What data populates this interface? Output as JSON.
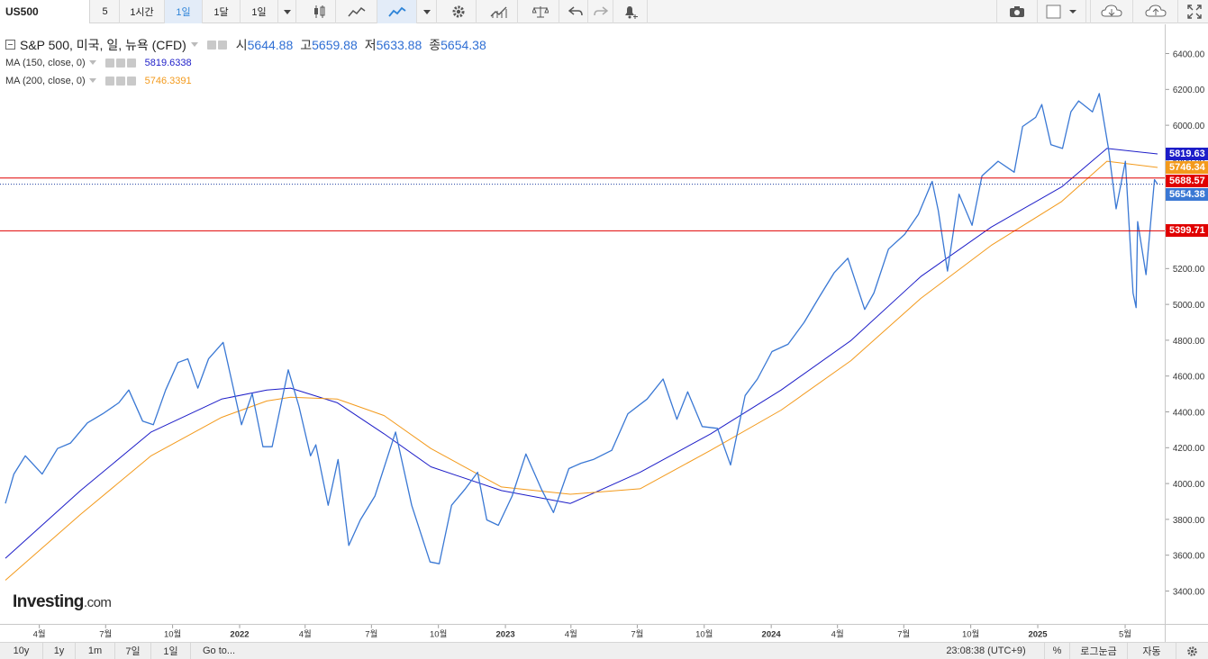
{
  "toolbar": {
    "symbol": "US500",
    "items": [
      "5",
      "1시간",
      "1일",
      "1달",
      "1일"
    ],
    "active_item": "1일"
  },
  "legend": {
    "title": "S&P 500, 미국, 일, 뉴욕 (CFD)",
    "open_label": "시",
    "open": "5644.88",
    "high_label": "고",
    "high": "5659.88",
    "low_label": "저",
    "low": "5633.88",
    "close_label": "종",
    "close": "5654.38",
    "ma150_label": "MA (150, close, 0)",
    "ma150_value": "5819.6338",
    "ma200_label": "MA (200, close, 0)",
    "ma200_value": "5746.3391"
  },
  "logo": {
    "main": "Investing",
    "suffix": ".com"
  },
  "badges": {
    "ma150": "5819.63",
    "ma200": "5746.34",
    "hline_top": "5688.57",
    "last": "5654.38",
    "hline_bottom": "5399.71"
  },
  "bottombar": {
    "ranges": [
      "10y",
      "1y",
      "1m",
      "7일",
      "1일"
    ],
    "goto": "Go to...",
    "time": "23:08:38 (UTC+9)",
    "percent": "%",
    "log": "로그눈금",
    "auto": "자동"
  },
  "colors": {
    "price": "#3a78d4",
    "ma150": "#1d1dc8",
    "ma200": "#f39a1c",
    "hline": "#e00000",
    "last_line": "#1f3fa0",
    "accent": "#2e84d8"
  },
  "chart_data": {
    "type": "line",
    "ylim": [
      3340,
      6440
    ],
    "y_ticks": [
      3400,
      3600,
      3800,
      4000,
      4200,
      4400,
      4600,
      4800,
      5000,
      5200,
      5400,
      5600,
      5800,
      6000,
      6200,
      6400
    ],
    "x_range": [
      "2021-03-25",
      "2025-05-06"
    ],
    "x_tick_labels": [
      {
        "label": "4월",
        "date": "2021-04-01"
      },
      {
        "label": "7월",
        "date": "2021-07-01"
      },
      {
        "label": "10월",
        "date": "2021-10-01"
      },
      {
        "label": "2022",
        "date": "2022-01-01"
      },
      {
        "label": "4월",
        "date": "2022-04-01"
      },
      {
        "label": "7월",
        "date": "2022-07-01"
      },
      {
        "label": "10월",
        "date": "2022-10-01"
      },
      {
        "label": "2023",
        "date": "2023-01-01"
      },
      {
        "label": "4월",
        "date": "2023-04-01"
      },
      {
        "label": "7월",
        "date": "2023-07-01"
      },
      {
        "label": "10월",
        "date": "2023-10-01"
      },
      {
        "label": "2024",
        "date": "2024-01-01"
      },
      {
        "label": "4월",
        "date": "2024-04-01"
      },
      {
        "label": "7월",
        "date": "2024-07-01"
      },
      {
        "label": "10월",
        "date": "2024-10-01"
      },
      {
        "label": "2025",
        "date": "2025-01-01"
      },
      {
        "label": "5월",
        "date": "2025-05-01"
      }
    ],
    "horizontal_lines": [
      5688.57,
      5399.71
    ],
    "last_value": 5654.38,
    "series": [
      {
        "name": "S&P 500",
        "x": [
          "2021-03-25",
          "2021-04-05",
          "2021-04-20",
          "2021-05-12",
          "2021-06-01",
          "2021-06-18",
          "2021-07-10",
          "2021-07-30",
          "2021-08-20",
          "2021-09-02",
          "2021-09-20",
          "2021-10-04",
          "2021-10-20",
          "2021-11-05",
          "2021-11-18",
          "2021-12-01",
          "2021-12-15",
          "2022-01-03",
          "2022-01-27",
          "2022-02-10",
          "2022-02-24",
          "2022-03-08",
          "2022-03-29",
          "2022-04-12",
          "2022-04-27",
          "2022-05-04",
          "2022-05-20",
          "2022-06-02",
          "2022-06-16",
          "2022-07-01",
          "2022-07-20",
          "2022-08-16",
          "2022-09-06",
          "2022-09-30",
          "2022-10-12",
          "2022-10-28",
          "2022-11-15",
          "2022-12-01",
          "2022-12-13",
          "2022-12-28",
          "2023-01-15",
          "2023-02-02",
          "2023-02-22",
          "2023-03-10",
          "2023-03-30",
          "2023-04-15",
          "2023-05-01",
          "2023-05-25",
          "2023-06-15",
          "2023-07-10",
          "2023-07-31",
          "2023-08-18",
          "2023-09-01",
          "2023-09-20",
          "2023-10-10",
          "2023-10-27",
          "2023-11-15",
          "2023-12-01",
          "2023-12-20",
          "2024-01-10",
          "2024-01-31",
          "2024-02-20",
          "2024-03-10",
          "2024-03-28",
          "2024-04-19",
          "2024-05-01",
          "2024-05-20",
          "2024-06-10",
          "2024-06-28",
          "2024-07-16",
          "2024-07-24",
          "2024-08-05",
          "2024-08-20",
          "2024-09-06",
          "2024-09-19",
          "2024-10-10",
          "2024-10-31",
          "2024-11-11",
          "2024-11-28",
          "2024-12-06",
          "2024-12-18",
          "2025-01-02",
          "2025-01-13",
          "2025-01-23",
          "2025-02-10",
          "2025-02-19",
          "2025-03-03",
          "2025-03-13",
          "2025-03-25",
          "2025-04-04",
          "2025-04-08",
          "2025-04-10",
          "2025-04-21",
          "2025-05-02",
          "2025-05-06"
        ],
        "values": [
          3910,
          4070,
          4170,
          4070,
          4210,
          4240,
          4350,
          4400,
          4460,
          4530,
          4360,
          4340,
          4530,
          4680,
          4700,
          4540,
          4700,
          4790,
          4340,
          4510,
          4220,
          4220,
          4640,
          4440,
          4170,
          4230,
          3900,
          4150,
          3680,
          3820,
          3950,
          4300,
          3900,
          3590,
          3580,
          3900,
          3990,
          4080,
          3820,
          3790,
          3950,
          4180,
          3990,
          3860,
          4100,
          4130,
          4150,
          4200,
          4400,
          4480,
          4590,
          4370,
          4520,
          4330,
          4320,
          4120,
          4500,
          4590,
          4740,
          4780,
          4900,
          5040,
          5170,
          5250,
          4970,
          5060,
          5300,
          5380,
          5490,
          5670,
          5510,
          5180,
          5600,
          5430,
          5700,
          5780,
          5720,
          5970,
          6020,
          6090,
          5870,
          5850,
          6050,
          6110,
          6050,
          6150,
          5850,
          5520,
          5780,
          5060,
          4980,
          5450,
          5160,
          5680,
          5654
        ]
      },
      {
        "name": "MA (150, close, 0)",
        "x": [
          "2021-03-25",
          "2021-07-01",
          "2021-10-01",
          "2022-01-01",
          "2022-03-01",
          "2022-04-01",
          "2022-06-01",
          "2022-08-01",
          "2022-10-01",
          "2023-01-01",
          "2023-04-01",
          "2023-07-01",
          "2023-10-01",
          "2024-01-01",
          "2024-04-01",
          "2024-07-01",
          "2024-10-01",
          "2025-01-01",
          "2025-03-01",
          "2025-05-06"
        ],
        "values": [
          3610,
          3980,
          4300,
          4480,
          4530,
          4540,
          4460,
          4290,
          4110,
          3980,
          3910,
          4080,
          4290,
          4530,
          4800,
          5150,
          5420,
          5640,
          5850,
          5820
        ]
      },
      {
        "name": "MA (200, close, 0)",
        "x": [
          "2021-03-25",
          "2021-07-01",
          "2021-10-01",
          "2022-01-01",
          "2022-03-01",
          "2022-04-01",
          "2022-06-01",
          "2022-08-01",
          "2022-10-01",
          "2023-01-01",
          "2023-04-01",
          "2023-07-01",
          "2023-10-01",
          "2024-01-01",
          "2024-04-01",
          "2024-07-01",
          "2024-10-01",
          "2025-01-01",
          "2025-03-01",
          "2025-05-06"
        ],
        "values": [
          3490,
          3850,
          4170,
          4380,
          4470,
          4490,
          4480,
          4390,
          4210,
          4000,
          3960,
          3990,
          4200,
          4420,
          4690,
          5030,
          5320,
          5560,
          5780,
          5746
        ]
      }
    ]
  }
}
